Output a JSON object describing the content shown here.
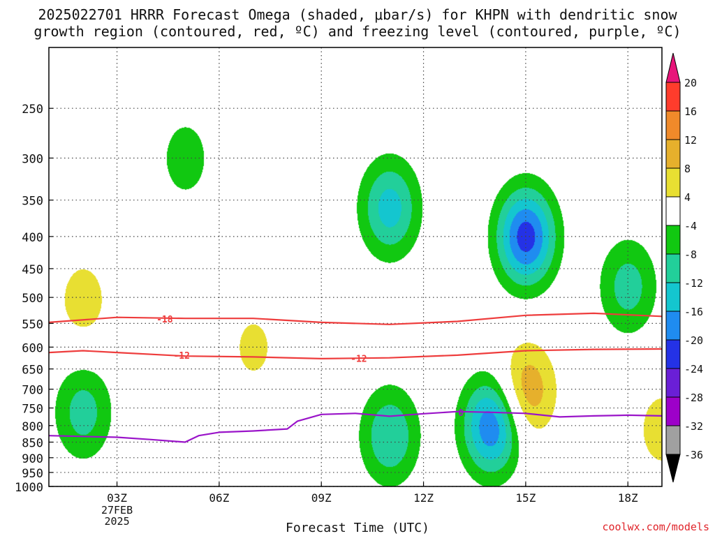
{
  "title": {
    "line1": "2025022701 HRRR Forecast Omega (shaded, μbar/s) for KHPN with dendritic snow",
    "line2": "growth region (contoured, red, ºC) and freezing level (contoured, purple, ºC)"
  },
  "xlabel": "Forecast Time (UTC)",
  "credit": "coolwx.com/models",
  "colors": {
    "ground": "#9b5a2e",
    "dgz_contour": "#ee3c3c",
    "freezing_contour": "#9a14c9"
  },
  "chart_data": {
    "type": "heatmap",
    "title": "2025022701 HRRR Forecast Omega (shaded, μbar/s) for KHPN with dendritic snow growth region (contoured, red, ºC) and freezing level (contoured, purple, ºC)",
    "xlabel": "Forecast Time (UTC)",
    "ylabel": "",
    "xlim_hours": [
      1,
      19
    ],
    "ylim_hpa": [
      1000,
      200
    ],
    "x_ticks": [
      {
        "hour": 3,
        "label": "03Z",
        "sublabel": [
          "27FEB",
          "2025"
        ]
      },
      {
        "hour": 6,
        "label": "06Z"
      },
      {
        "hour": 9,
        "label": "09Z"
      },
      {
        "hour": 12,
        "label": "12Z"
      },
      {
        "hour": 15,
        "label": "15Z"
      },
      {
        "hour": 18,
        "label": "18Z"
      }
    ],
    "y_ticks": [
      250,
      300,
      350,
      400,
      450,
      500,
      550,
      600,
      650,
      700,
      750,
      800,
      850,
      900,
      950,
      1000
    ],
    "grid": true,
    "colorbar": {
      "levels": [
        -36,
        -32,
        -28,
        -24,
        -20,
        -16,
        -12,
        -8,
        -4,
        4,
        8,
        12,
        16,
        20
      ],
      "colors": [
        "#000000",
        "#a0a0a0",
        "#9d00c9",
        "#6a1fd6",
        "#2432e6",
        "#1f8cf0",
        "#14c6cf",
        "#22cf9a",
        "#11c811",
        "#ffffff",
        "#e8df32",
        "#e6b02c",
        "#f08a2a",
        "#ff3c2c",
        "#e8157a"
      ]
    },
    "omega_features": [
      {
        "hour": 2.0,
        "hpa": 505,
        "value": 6
      },
      {
        "hour": 2.0,
        "hpa": 760,
        "value": -10
      },
      {
        "hour": 5.0,
        "hpa": 300,
        "value": -6
      },
      {
        "hour": 7.0,
        "hpa": 600,
        "value": 5
      },
      {
        "hour": 11.0,
        "hpa": 360,
        "value": -14
      },
      {
        "hour": 11.0,
        "hpa": 830,
        "value": -12
      },
      {
        "hour": 14.0,
        "hpa": 800,
        "value": -20
      },
      {
        "hour": 15.0,
        "hpa": 400,
        "value": -22
      },
      {
        "hour": 15.0,
        "hpa": 705,
        "value": 12
      },
      {
        "hour": 18.0,
        "hpa": 480,
        "value": -10
      },
      {
        "hour": 19.0,
        "hpa": 810,
        "value": 6
      }
    ],
    "contours": [
      {
        "label": "-18",
        "color": "#ee3c3c",
        "hours": [
          1,
          3,
          5,
          7,
          9,
          11,
          13,
          15,
          17,
          19
        ],
        "hpa": [
          548,
          538,
          540,
          540,
          548,
          552,
          546,
          534,
          530,
          536
        ]
      },
      {
        "label": "-12",
        "color": "#ee3c3c",
        "hours": [
          1,
          2,
          3,
          5,
          7,
          9,
          11,
          13,
          15,
          17,
          19
        ],
        "hpa": [
          612,
          608,
          612,
          620,
          622,
          626,
          624,
          618,
          608,
          605,
          604
        ]
      },
      {
        "label": "0",
        "color": "#9a14c9",
        "hours": [
          1,
          3,
          4,
          5,
          5.4,
          6,
          7,
          8,
          8.3,
          9,
          10,
          11,
          12,
          13,
          14,
          15,
          16,
          17,
          18,
          19
        ],
        "hpa": [
          830,
          835,
          842,
          850,
          830,
          820,
          816,
          810,
          787,
          768,
          765,
          773,
          766,
          760,
          762,
          765,
          775,
          772,
          770,
          772
        ]
      }
    ],
    "contour_label_positions": [
      {
        "label": "-18",
        "hour": 4.4,
        "hpa": 541
      },
      {
        "label": "-12",
        "hour": 4.9,
        "hpa": 618
      },
      {
        "label": "-12",
        "hour": 10.1,
        "hpa": 625
      },
      {
        "label": "0",
        "hour": 13.1,
        "hpa": 762
      }
    ]
  }
}
